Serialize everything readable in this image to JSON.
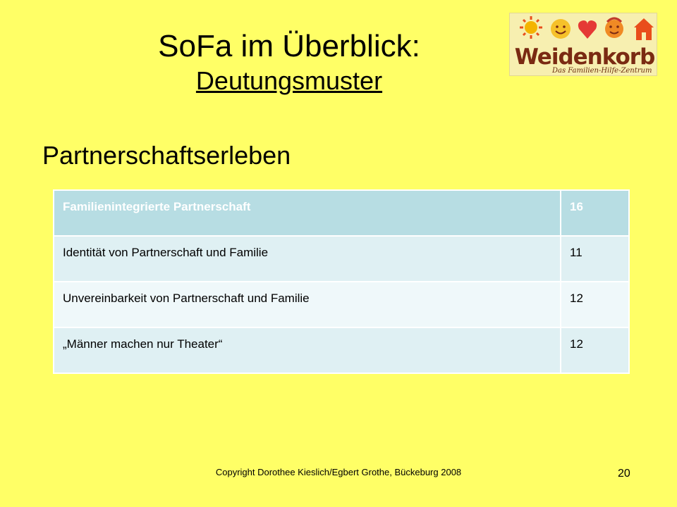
{
  "slide": {
    "title_line1": "SoFa im Überblick:",
    "title_line2": "Deutungsmuster",
    "subtitle": "Partnerschaftserleben",
    "logo": {
      "name": "Weidenkorb",
      "tagline": "Das Familien-Hilfe-Zentrum",
      "colors": [
        "#E94E1B",
        "#F4B400",
        "#E53935",
        "#F08A24",
        "#7a2a12"
      ]
    },
    "table": {
      "header": {
        "label": "Familienintegrierte Partnerschaft",
        "value": "16"
      },
      "rows": [
        {
          "label": "Identität von Partnerschaft und Familie",
          "value": "11"
        },
        {
          "label": "Unvereinbarkeit von Partnerschaft und Familie",
          "value": "12"
        },
        {
          "label": "„Männer machen nur Theater“",
          "value": "12"
        }
      ]
    },
    "footer": {
      "copyright": "Copyright Dorothee Kieslich/Egbert Grothe, Bückeburg 2008",
      "page_number": "20"
    }
  }
}
